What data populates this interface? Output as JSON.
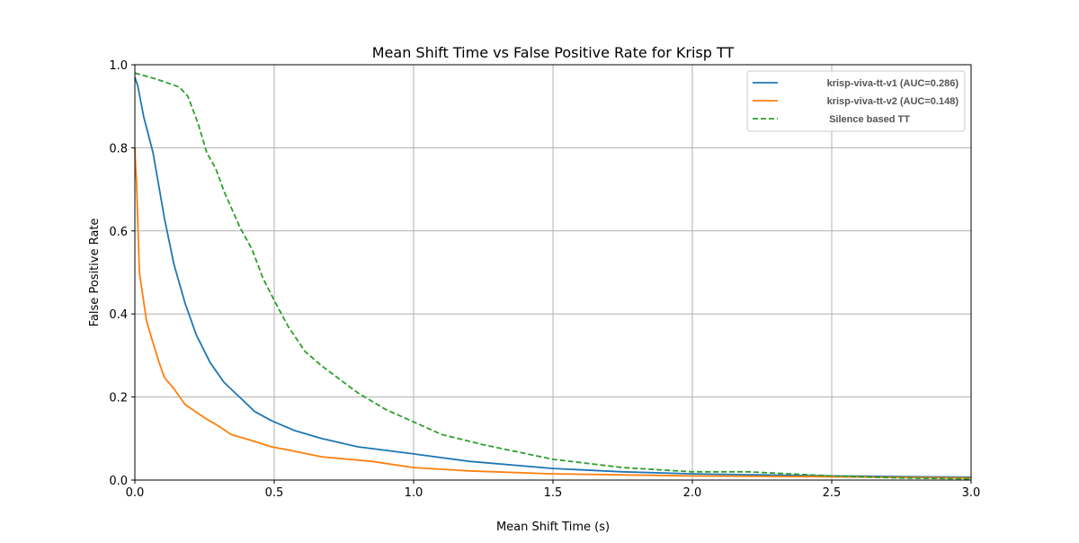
{
  "chart_data": {
    "type": "line",
    "title": "Mean Shift Time vs False Positive Rate for Krisp TT",
    "xlabel": "Mean Shift Time (s)",
    "ylabel": "False Positive Rate",
    "xlim": [
      0,
      3.0
    ],
    "ylim": [
      0,
      1.0
    ],
    "xticks": [
      "0.0",
      "0.5",
      "1.0",
      "1.5",
      "2.0",
      "2.5",
      "3.0"
    ],
    "yticks": [
      "0.0",
      "0.2",
      "0.4",
      "0.6",
      "0.8",
      "1.0"
    ],
    "grid": true,
    "legend_position": "top-right",
    "series": [
      {
        "name": "krisp-viva-tt-v1 (AUC=0.286)",
        "color": "#1f77b4",
        "style": "solid",
        "x": [
          0,
          0.01,
          0.032,
          0.065,
          0.106,
          0.14,
          0.18,
          0.22,
          0.27,
          0.32,
          0.38,
          0.43,
          0.49,
          0.57,
          0.67,
          0.8,
          1.0,
          1.2,
          1.5,
          1.75,
          2.0,
          2.5,
          3.0
        ],
        "y": [
          0.97,
          0.95,
          0.874,
          0.788,
          0.63,
          0.52,
          0.426,
          0.35,
          0.283,
          0.235,
          0.197,
          0.165,
          0.143,
          0.12,
          0.1,
          0.08,
          0.063,
          0.045,
          0.028,
          0.02,
          0.015,
          0.01,
          0.007
        ]
      },
      {
        "name": "krisp-viva-tt-v2 (AUC=0.148)",
        "color": "#ff7f0e",
        "style": "solid",
        "x": [
          0,
          0.003,
          0.006,
          0.016,
          0.042,
          0.065,
          0.087,
          0.106,
          0.14,
          0.18,
          0.25,
          0.3,
          0.345,
          0.42,
          0.49,
          0.57,
          0.67,
          0.85,
          1.0,
          1.2,
          1.5,
          2.0,
          2.5,
          3.0
        ],
        "y": [
          0.8,
          0.75,
          0.716,
          0.5,
          0.383,
          0.33,
          0.283,
          0.247,
          0.22,
          0.182,
          0.15,
          0.13,
          0.11,
          0.095,
          0.08,
          0.07,
          0.056,
          0.045,
          0.03,
          0.022,
          0.015,
          0.01,
          0.008,
          0.005
        ]
      },
      {
        "name": "Silence based TT",
        "color": "#2ca02c",
        "style": "dashed",
        "x": [
          0,
          0.08,
          0.16,
          0.19,
          0.226,
          0.258,
          0.29,
          0.32,
          0.377,
          0.42,
          0.46,
          0.505,
          0.55,
          0.61,
          0.67,
          0.8,
          0.9,
          1.0,
          1.1,
          1.25,
          1.5,
          1.75,
          2.0,
          2.2,
          2.5,
          2.75,
          3.0
        ],
        "y": [
          0.98,
          0.965,
          0.946,
          0.924,
          0.86,
          0.788,
          0.75,
          0.695,
          0.608,
          0.556,
          0.485,
          0.426,
          0.37,
          0.31,
          0.275,
          0.21,
          0.17,
          0.14,
          0.11,
          0.085,
          0.05,
          0.03,
          0.02,
          0.02,
          0.01,
          0.005,
          0.003
        ]
      }
    ]
  }
}
